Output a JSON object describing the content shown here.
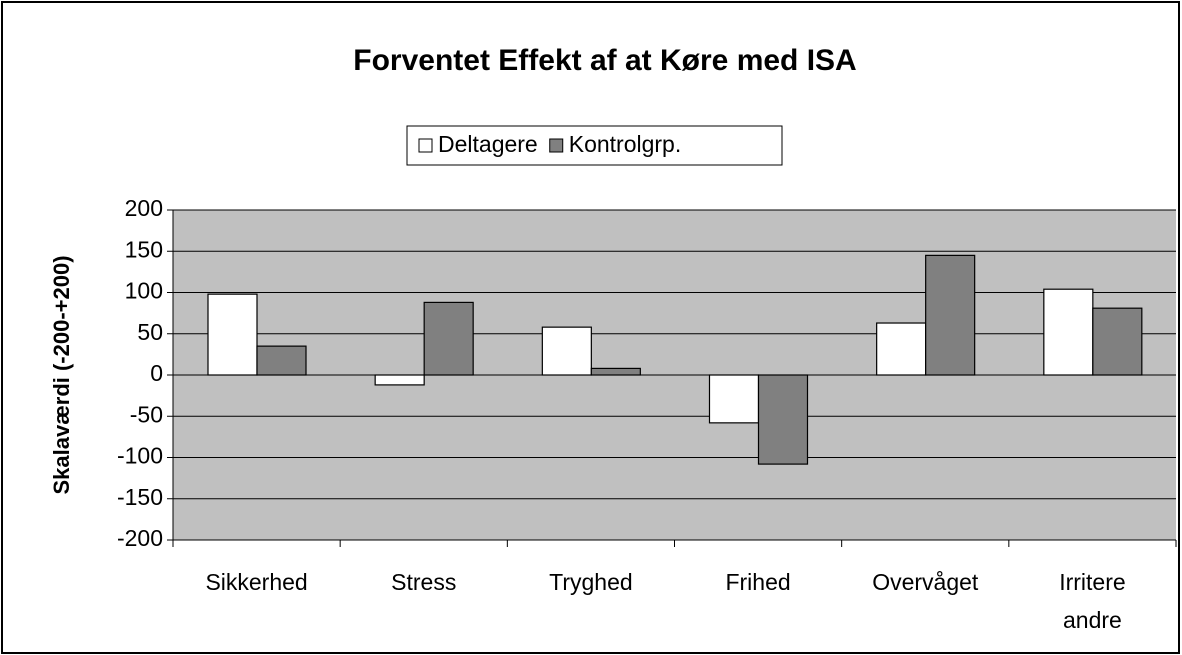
{
  "chart_data": {
    "type": "bar",
    "title": "Forventet Effekt af at Køre med ISA",
    "y_label": "Skalaværdi (-200-+200)",
    "categories": [
      "Sikkerhed",
      "Stress",
      "Tryghed",
      "Frihed",
      "Overvåget",
      "Irritere andre"
    ],
    "series": [
      {
        "name": "Deltagere",
        "color": "#ffffff",
        "values": [
          98,
          -12,
          58,
          -58,
          63,
          104
        ]
      },
      {
        "name": "Kontrolgrp.",
        "color": "#808080",
        "values": [
          35,
          88,
          8,
          -108,
          145,
          81
        ]
      }
    ],
    "ylim": [
      -200,
      200
    ],
    "yticks": [
      -200,
      -150,
      -100,
      -50,
      0,
      50,
      100,
      150,
      200
    ],
    "grid": true,
    "legend": "top",
    "plot_background": "#c0c0c0"
  }
}
